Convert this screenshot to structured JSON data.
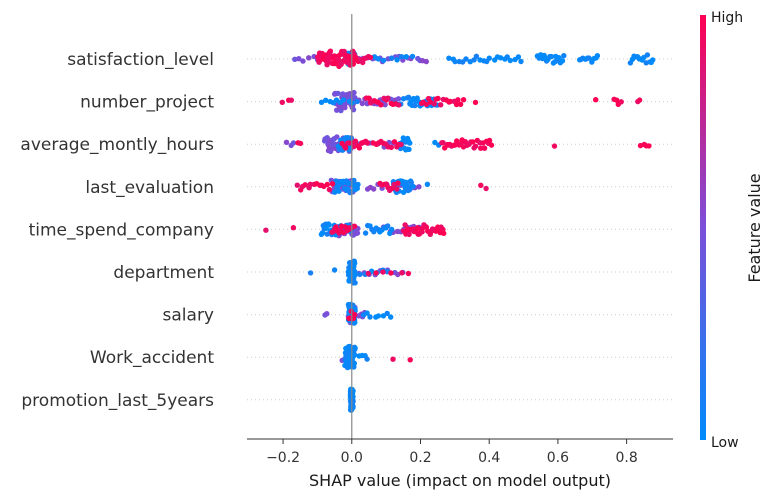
{
  "chart_data": {
    "type": "scatter",
    "subtype": "shap-beeswarm",
    "title": "",
    "xlabel": "SHAP value (impact on model output)",
    "ylabel": "",
    "xlim": [
      -0.305,
      0.935
    ],
    "xticks": [
      -0.2,
      0.0,
      0.2,
      0.4,
      0.6,
      0.8
    ],
    "xtick_labels": [
      "−0.2",
      "0.0",
      "0.2",
      "0.4",
      "0.6",
      "0.8"
    ],
    "zero_line": 0.0,
    "grid": false,
    "colorbar": {
      "title": "Feature value",
      "high_label": "High",
      "low_label": "Low",
      "low_color": "#008bfb",
      "mid_color": "#7b4fd9",
      "high_color": "#ff0052"
    },
    "features": [
      {
        "name": "satisfaction_level",
        "low": {
          "ranges": [
            [
              -0.02,
              0.01,
              18
            ],
            [
              0.06,
              0.19,
              8
            ],
            [
              0.28,
              0.5,
              22
            ],
            [
              0.54,
              0.62,
              18
            ],
            [
              0.66,
              0.72,
              10
            ],
            [
              0.81,
              0.88,
              14
            ]
          ]
        },
        "high": {
          "ranges": [
            [
              -0.1,
              0.01,
              56
            ],
            [
              0.01,
              0.06,
              8
            ]
          ]
        },
        "mid": {
          "ranges": [
            [
              -0.17,
              -0.06,
              8
            ],
            [
              0.02,
              0.18,
              14
            ],
            [
              0.19,
              0.22,
              4
            ]
          ]
        }
      },
      {
        "name": "number_project",
        "low": {
          "ranges": [
            [
              -0.09,
              0.02,
              10
            ],
            [
              0.16,
              0.25,
              24
            ],
            [
              0.12,
              0.16,
              4
            ]
          ]
        },
        "mid": {
          "ranges": [
            [
              -0.05,
              0.01,
              44
            ],
            [
              0.02,
              0.14,
              16
            ]
          ]
        },
        "high": {
          "ranges": [
            [
              -0.21,
              -0.16,
              3
            ],
            [
              0.04,
              0.14,
              14
            ],
            [
              0.2,
              0.33,
              18
            ],
            [
              0.36,
              0.37,
              1
            ],
            [
              0.71,
              0.72,
              1
            ],
            [
              0.76,
              0.79,
              4
            ],
            [
              0.83,
              0.84,
              2
            ]
          ]
        }
      },
      {
        "name": "average_montly_hours",
        "low": {
          "ranges": [
            [
              -0.04,
              0.0,
              20
            ],
            [
              0.14,
              0.17,
              16
            ],
            [
              0.24,
              0.26,
              2
            ]
          ]
        },
        "mid": {
          "ranges": [
            [
              -0.19,
              -0.16,
              3
            ],
            [
              -0.08,
              0.0,
              40
            ],
            [
              0.01,
              0.13,
              10
            ]
          ]
        },
        "high": {
          "ranges": [
            [
              -0.16,
              -0.14,
              2
            ],
            [
              -0.03,
              0.05,
              14
            ],
            [
              0.06,
              0.15,
              12
            ],
            [
              0.26,
              0.41,
              30
            ],
            [
              0.59,
              0.6,
              1
            ],
            [
              0.84,
              0.87,
              4
            ]
          ]
        }
      },
      {
        "name": "last_evaluation",
        "low": {
          "ranges": [
            [
              -0.05,
              0.02,
              30
            ],
            [
              0.12,
              0.18,
              24
            ],
            [
              0.22,
              0.23,
              1
            ]
          ]
        },
        "mid": {
          "ranges": [
            [
              -0.06,
              0.01,
              30
            ],
            [
              0.04,
              0.2,
              14
            ]
          ]
        },
        "high": {
          "ranges": [
            [
              -0.16,
              -0.05,
              14
            ],
            [
              0.08,
              0.14,
              10
            ],
            [
              0.37,
              0.4,
              2
            ]
          ]
        }
      },
      {
        "name": "time_spend_company",
        "low": {
          "ranges": [
            [
              -0.09,
              0.0,
              30
            ],
            [
              0.04,
              0.12,
              14
            ]
          ]
        },
        "mid": {
          "ranges": [
            [
              -0.04,
              0.02,
              26
            ],
            [
              0.08,
              0.2,
              12
            ]
          ]
        },
        "high": {
          "ranges": [
            [
              -0.25,
              -0.25,
              1
            ],
            [
              -0.17,
              -0.17,
              1
            ],
            [
              -0.06,
              0.01,
              16
            ],
            [
              0.15,
              0.27,
              36
            ]
          ]
        }
      },
      {
        "name": "department",
        "low": {
          "ranges": [
            [
              -0.12,
              -0.12,
              1
            ],
            [
              -0.05,
              -0.05,
              1
            ],
            [
              -0.01,
              0.01,
              44
            ],
            [
              0.02,
              0.12,
              6
            ]
          ]
        },
        "mid": {
          "ranges": [
            [
              0.02,
              0.16,
              10
            ]
          ]
        },
        "high": {
          "ranges": [
            [
              0.04,
              0.18,
              6
            ]
          ]
        }
      },
      {
        "name": "salary",
        "low": {
          "ranges": [
            [
              -0.01,
              0.01,
              40
            ],
            [
              0.03,
              0.12,
              8
            ]
          ]
        },
        "mid": {
          "ranges": [
            [
              -0.08,
              -0.07,
              2
            ],
            [
              -0.01,
              0.01,
              20
            ],
            [
              0.02,
              0.04,
              4
            ]
          ]
        },
        "high": {
          "ranges": [
            [
              -0.01,
              0.01,
              6
            ]
          ]
        }
      },
      {
        "name": "Work_accident",
        "low": {
          "ranges": [
            [
              -0.02,
              0.01,
              50
            ],
            [
              0.02,
              0.05,
              4
            ]
          ]
        },
        "mid": {
          "ranges": [
            [
              -0.03,
              0.01,
              6
            ]
          ]
        },
        "high": {
          "ranges": [
            [
              0.12,
              0.12,
              1
            ],
            [
              0.17,
              0.17,
              1
            ]
          ]
        }
      },
      {
        "name": "promotion_last_5years",
        "low": {
          "ranges": [
            [
              -0.004,
              0.004,
              60
            ]
          ]
        },
        "mid": {
          "ranges": []
        },
        "high": {
          "ranges": []
        }
      }
    ]
  }
}
